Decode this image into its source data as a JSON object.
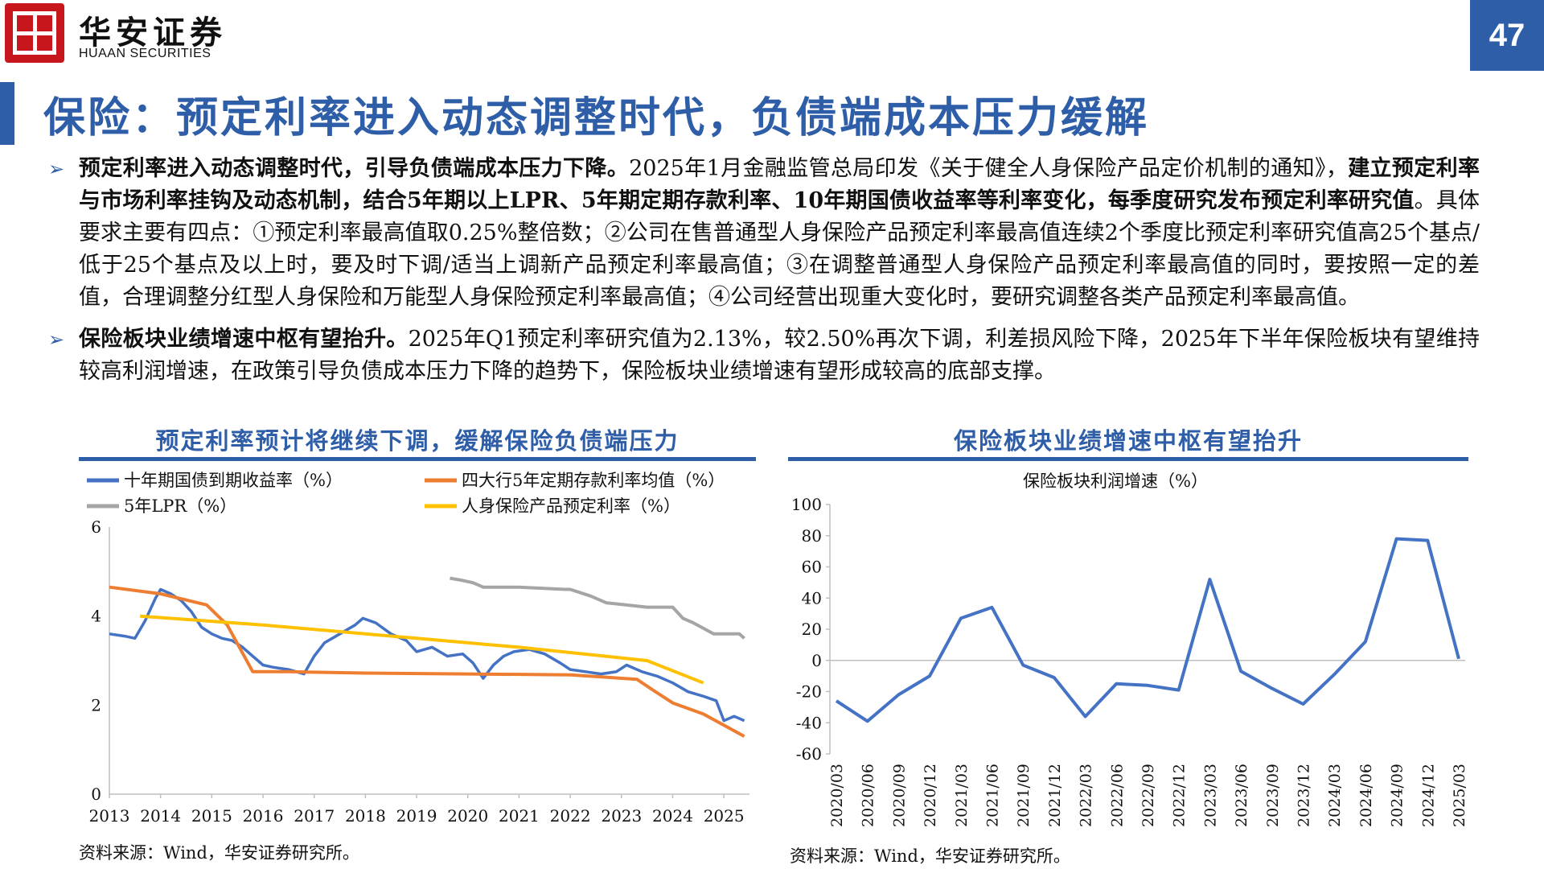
{
  "header": {
    "logo_cn": "华安证券",
    "logo_en": "HUAAN SECURITIES",
    "page_number": "47",
    "brand_color": "#2f5ea8",
    "logo_color": "#c8161d"
  },
  "title": "保险：预定利率进入动态调整时代，负债端成本压力缓解",
  "bullets": [
    {
      "icon": "arrow-right-icon",
      "segments": [
        {
          "bold": true,
          "text": "预定利率进入动态调整时代，引导负债端成本压力下降。"
        },
        {
          "bold": false,
          "text": "2025年1月金融监管总局印发《关于健全人身保险产品定价机制的通知》，"
        },
        {
          "bold": true,
          "text": "建立预定利率与市场利率挂钩及动态机制，结合5年期以上LPR、5年期定期存款利率、10年期国债收益率等利率变化，每季度研究发布预定利率研究值"
        },
        {
          "bold": false,
          "text": "。具体要求主要有四点：①预定利率最高值取0.25%整倍数；②公司在售普通型人身保险产品预定利率最高值连续2个季度比预定利率研究值高25个基点/低于25个基点及以上时，要及时下调/适当上调新产品预定利率最高值；③在调整普通型人身保险产品预定利率最高值的同时，要按照一定的差值，合理调整分红型人身保险和万能型人身保险预定利率最高值；④公司经营出现重大变化时，要研究调整各类产品预定利率最高值。"
        }
      ]
    },
    {
      "icon": "arrow-right-icon",
      "segments": [
        {
          "bold": true,
          "text": "保险板块业绩增速中枢有望抬升。"
        },
        {
          "bold": false,
          "text": "2025年Q1预定利率研究值为2.13%，较2.50%再次下调，利差损风险下降，2025年下半年保险板块有望维持较高利润增速，在政策引导负债成本压力下降的趋势下，保险板块业绩增速有望形成较高的底部支撑。"
        }
      ]
    }
  ],
  "charts": {
    "left": {
      "heading": "预定利率预计将继续下调，缓解保险负债端压力",
      "source": "资料来源：Wind，华安证券研究所。"
    },
    "right": {
      "heading": "保险板块业绩增速中枢有望抬升",
      "source": "资料来源：Wind，华安证券研究所。"
    }
  },
  "chart_data": [
    {
      "type": "line",
      "title": "",
      "xlabel": "",
      "ylabel": "",
      "ylim": [
        0,
        6
      ],
      "yticks": [
        0,
        2,
        4,
        6
      ],
      "xticks": [
        "2013",
        "2014",
        "2015",
        "2016",
        "2017",
        "2018",
        "2019",
        "2020",
        "2021",
        "2022",
        "2023",
        "2024",
        "2025"
      ],
      "xlim": [
        2013.0,
        2025.5
      ],
      "grid": false,
      "legend_position": "top",
      "series": [
        {
          "name": "十年期国债到期收益率（%）",
          "color": "#4472c4",
          "x": [
            2013.0,
            2013.3,
            2013.5,
            2013.7,
            2013.9,
            2014.0,
            2014.2,
            2014.4,
            2014.6,
            2014.8,
            2015.0,
            2015.2,
            2015.4,
            2015.6,
            2015.8,
            2016.0,
            2016.2,
            2016.5,
            2016.8,
            2017.0,
            2017.2,
            2017.5,
            2017.8,
            2017.95,
            2018.2,
            2018.5,
            2018.8,
            2019.0,
            2019.3,
            2019.6,
            2019.9,
            2020.1,
            2020.3,
            2020.5,
            2020.7,
            2020.9,
            2021.2,
            2021.5,
            2021.8,
            2022.0,
            2022.3,
            2022.6,
            2022.9,
            2023.1,
            2023.4,
            2023.7,
            2024.0,
            2024.3,
            2024.6,
            2024.85,
            2025.0,
            2025.2,
            2025.4
          ],
          "y": [
            3.6,
            3.55,
            3.5,
            3.9,
            4.4,
            4.6,
            4.5,
            4.35,
            4.1,
            3.75,
            3.6,
            3.5,
            3.45,
            3.3,
            3.1,
            2.9,
            2.85,
            2.8,
            2.7,
            3.1,
            3.4,
            3.6,
            3.8,
            3.95,
            3.85,
            3.6,
            3.45,
            3.2,
            3.3,
            3.1,
            3.15,
            2.95,
            2.6,
            2.9,
            3.1,
            3.2,
            3.25,
            3.15,
            2.95,
            2.8,
            2.75,
            2.7,
            2.75,
            2.9,
            2.75,
            2.65,
            2.5,
            2.3,
            2.2,
            2.1,
            1.65,
            1.75,
            1.65
          ]
        },
        {
          "name": "四大行5年定期存款利率均值（%）",
          "color": "#ed7d31",
          "x": [
            2013.0,
            2014.0,
            2014.9,
            2015.3,
            2015.8,
            2016.5,
            2018.0,
            2020.0,
            2022.0,
            2023.3,
            2023.6,
            2024.0,
            2024.6,
            2025.4
          ],
          "y": [
            4.65,
            4.5,
            4.25,
            3.8,
            2.75,
            2.75,
            2.72,
            2.7,
            2.68,
            2.58,
            2.35,
            2.05,
            1.8,
            1.3
          ]
        },
        {
          "name": "5年LPR（%）",
          "color": "#a5a5a5",
          "x": [
            2019.65,
            2019.9,
            2020.1,
            2020.3,
            2021.0,
            2021.9,
            2022.0,
            2022.4,
            2022.7,
            2023.5,
            2024.0,
            2024.2,
            2024.4,
            2024.8,
            2025.3,
            2025.4
          ],
          "y": [
            4.85,
            4.8,
            4.75,
            4.65,
            4.65,
            4.6,
            4.6,
            4.45,
            4.3,
            4.2,
            4.2,
            3.95,
            3.85,
            3.6,
            3.6,
            3.5
          ]
        },
        {
          "name": "人身保险产品预定利率（%）",
          "color": "#ffc000",
          "x": [
            2013.6,
            2016.0,
            2019.0,
            2021.0,
            2023.5,
            2024.6
          ],
          "y": [
            4.0,
            3.8,
            3.5,
            3.3,
            3.0,
            2.5
          ]
        }
      ]
    },
    {
      "type": "line",
      "title": "保险板块利润增速（%）",
      "xlabel": "",
      "ylabel": "",
      "ylim": [
        -60,
        100
      ],
      "yticks": [
        -60,
        -40,
        -20,
        0,
        20,
        40,
        60,
        80,
        100
      ],
      "grid": false,
      "categories": [
        "2020/03",
        "2020/06",
        "2020/09",
        "2020/12",
        "2021/03",
        "2021/06",
        "2021/09",
        "2021/12",
        "2022/03",
        "2022/06",
        "2022/09",
        "2022/12",
        "2023/03",
        "2023/06",
        "2023/09",
        "2023/12",
        "2024/03",
        "2024/06",
        "2024/09",
        "2024/12",
        "2025/03"
      ],
      "series": [
        {
          "name": "保险板块利润增速（%）",
          "color": "#4472c4",
          "values": [
            -26,
            -39,
            -22,
            -10,
            27,
            34,
            -3,
            -11,
            -36,
            -15,
            -16,
            -19,
            52,
            -7,
            -18,
            -28,
            -9,
            12,
            78,
            77,
            1
          ]
        }
      ]
    }
  ]
}
